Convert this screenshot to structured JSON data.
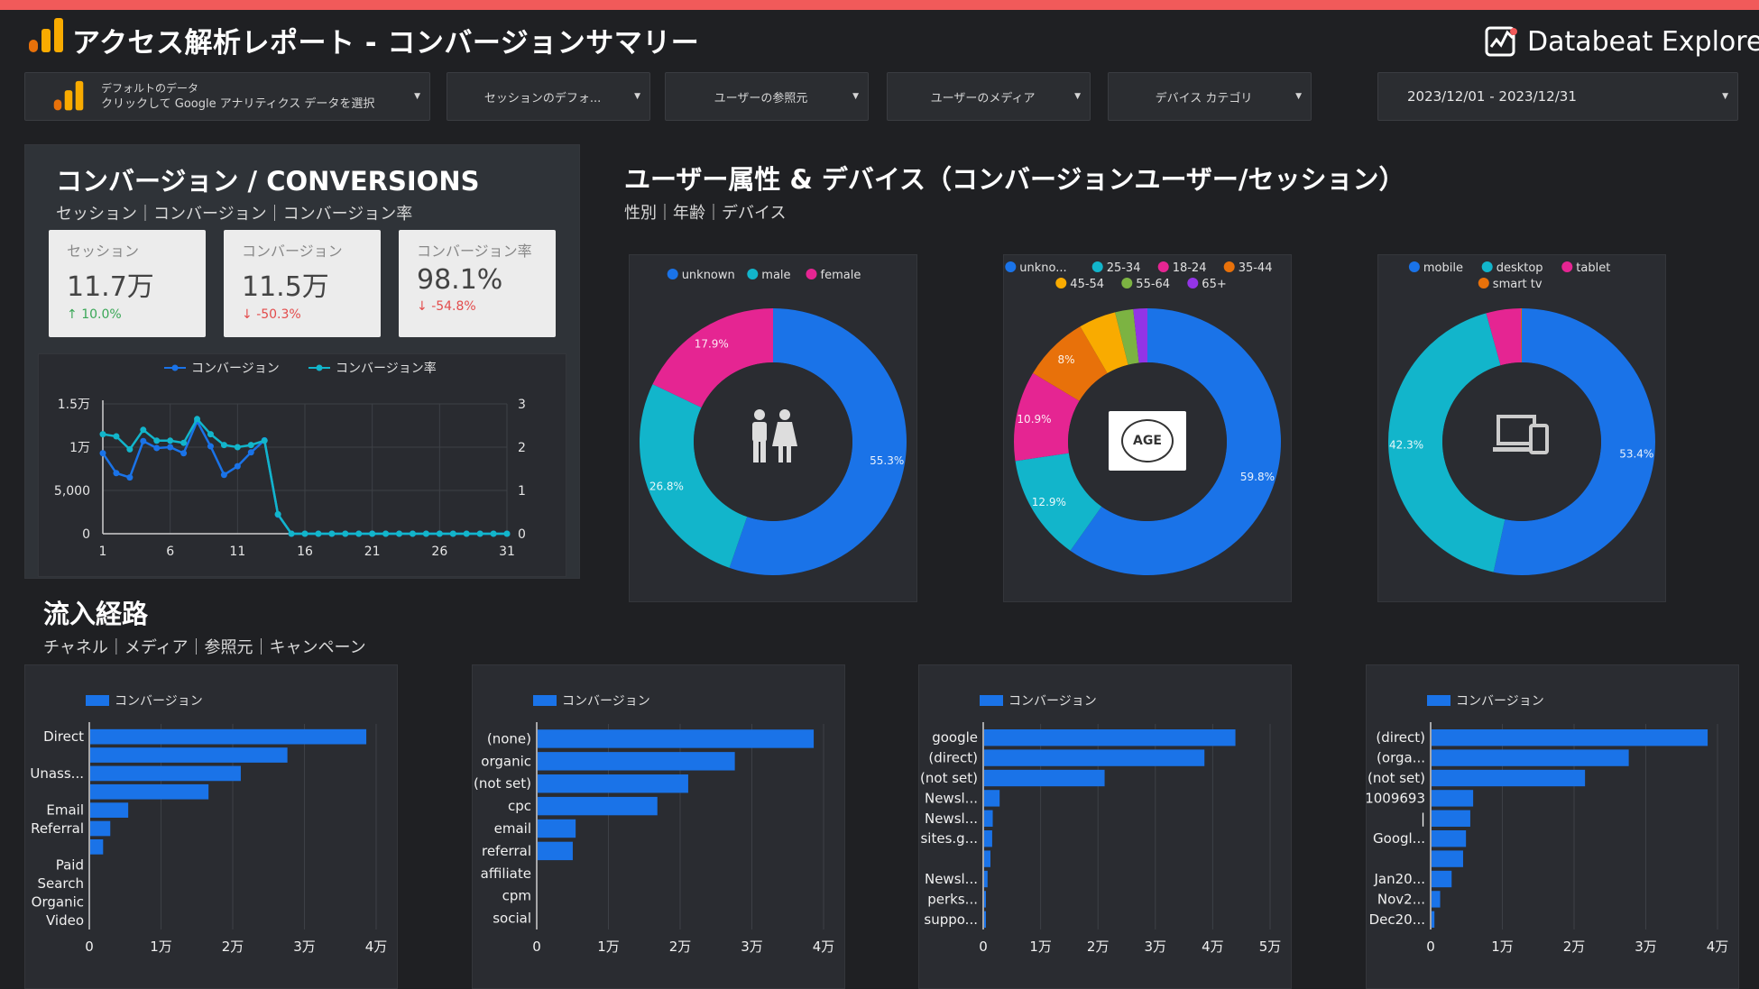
{
  "header": {
    "title": "アクセス解析レポート - コンバージョンサマリー",
    "brand": "Databeat Explore"
  },
  "filters": {
    "datasource_line1": "デフォルトのデータ",
    "datasource_line2": "クリックして Google アナリティクス データを選択",
    "session_default": "セッションのデフォ...",
    "user_source": "ユーザーの参照元",
    "user_medium": "ユーザーのメディア",
    "device_category": "デバイス カテゴリ",
    "date_range": "2023/12/01 - 2023/12/31"
  },
  "conversions": {
    "title": "コンバージョン / CONVERSIONS",
    "subtitle": "セッション｜コンバージョン｜コンバージョン率",
    "kpis": [
      {
        "label": "セッション",
        "value": "11.7万",
        "delta": "10.0%",
        "direction": "up"
      },
      {
        "label": "コンバージョン",
        "value": "11.5万",
        "delta": "-50.3%",
        "direction": "down"
      },
      {
        "label": "コンバージョン率",
        "value": "98.1%",
        "delta": "-54.8%",
        "direction": "down"
      }
    ]
  },
  "demographics": {
    "title": "ユーザー属性 & デバイス（コンバージョンユーザー/セッション）",
    "subtitle": "性別｜年齢｜デバイス",
    "age_icon_text": "AGE"
  },
  "traffic": {
    "title": "流入経路",
    "subtitle": "チャネル｜メディア｜参照元｜キャンペーン"
  },
  "colors": {
    "blue": "#1a73e8",
    "teal": "#12b5cb",
    "magenta": "#e52592",
    "orange": "#e8710a",
    "amber": "#f9ab00",
    "green": "#7cb342",
    "purple": "#9334e6",
    "background": "#1f2023",
    "panel": "#2a2c31",
    "accent_bar": "#f15a5a"
  },
  "chart_data": [
    {
      "type": "line",
      "legend": [
        "コンバージョン",
        "コンバージョン率"
      ],
      "x": [
        1,
        2,
        3,
        4,
        5,
        6,
        7,
        8,
        9,
        10,
        11,
        12,
        13,
        14,
        15,
        16,
        17,
        18,
        19,
        20,
        21,
        22,
        23,
        24,
        25,
        26,
        27,
        28,
        29,
        30,
        31
      ],
      "xticks": [
        "1",
        "6",
        "11",
        "16",
        "21",
        "26",
        "31"
      ],
      "yticks_left": [
        "1.5万",
        "1万",
        "5,000",
        "0"
      ],
      "yticks_right": [
        "3",
        "2",
        "1",
        "0"
      ],
      "ylim_left": [
        0,
        15000
      ],
      "ylim_right": [
        0,
        3
      ],
      "series": [
        {
          "name": "コンバージョン",
          "axis": "left",
          "values": [
            9300,
            7000,
            6500,
            10700,
            9900,
            10000,
            9300,
            13000,
            10100,
            6800,
            7800,
            9400,
            10800,
            2200,
            0,
            0,
            0,
            0,
            0,
            0,
            0,
            0,
            0,
            0,
            0,
            0,
            0,
            0,
            0,
            0,
            0
          ]
        },
        {
          "name": "コンバージョン率",
          "axis": "right",
          "values": [
            2.3,
            2.25,
            1.95,
            2.4,
            2.15,
            2.15,
            2.1,
            2.65,
            2.3,
            2.05,
            2.0,
            2.05,
            2.15,
            0.45,
            0,
            0,
            0,
            0,
            0,
            0,
            0,
            0,
            0,
            0,
            0,
            0,
            0,
            0,
            0,
            0,
            0
          ]
        }
      ]
    },
    {
      "type": "pie",
      "legend": [
        "unknown",
        "male",
        "female"
      ],
      "values": [
        55.3,
        26.8,
        17.9
      ],
      "labels": [
        "55.3%",
        "26.8%",
        "17.9%"
      ],
      "colors": [
        "#1a73e8",
        "#12b5cb",
        "#e52592"
      ]
    },
    {
      "type": "pie",
      "legend": [
        "unkno...",
        "25-34",
        "18-24",
        "35-44",
        "45-54",
        "55-64",
        "65+"
      ],
      "values": [
        59.8,
        12.9,
        10.9,
        8.0,
        4.5,
        2.2,
        1.7
      ],
      "labels": [
        "59.8%",
        "12.9%",
        "10.9%",
        "8%",
        "",
        "",
        ""
      ],
      "colors": [
        "#1a73e8",
        "#12b5cb",
        "#e52592",
        "#e8710a",
        "#f9ab00",
        "#7cb342",
        "#9334e6"
      ]
    },
    {
      "type": "pie",
      "legend": [
        "mobile",
        "desktop",
        "tablet",
        "smart tv"
      ],
      "values": [
        53.4,
        42.3,
        4.2,
        0.1
      ],
      "labels": [
        "53.4%",
        "42.3%",
        "",
        ""
      ],
      "colors": [
        "#1a73e8",
        "#12b5cb",
        "#e52592",
        "#e8710a"
      ]
    },
    {
      "type": "bar",
      "orientation": "horizontal",
      "legend": "コンバージョン",
      "categories": [
        "Direct",
        "",
        "Unass...",
        "",
        "Email",
        "Referral",
        "",
        "Paid",
        "Search",
        "Organic",
        "Video"
      ],
      "values": [
        38500,
        27500,
        21000,
        16500,
        5300,
        2800,
        1800,
        0,
        0,
        0,
        0
      ],
      "xticks": [
        "0",
        "1万",
        "2万",
        "3万",
        "4万"
      ],
      "xlim": [
        0,
        40000
      ]
    },
    {
      "type": "bar",
      "orientation": "horizontal",
      "legend": "コンバージョン",
      "categories": [
        "(none)",
        "organic",
        "(not set)",
        "cpc",
        "email",
        "referral",
        "affiliate",
        "cpm",
        "social"
      ],
      "values": [
        38500,
        27500,
        21000,
        16700,
        5300,
        4900,
        0,
        0,
        0
      ],
      "xticks": [
        "0",
        "1万",
        "2万",
        "3万",
        "4万"
      ],
      "xlim": [
        0,
        40000
      ]
    },
    {
      "type": "bar",
      "orientation": "horizontal",
      "legend": "コンバージョン",
      "categories": [
        "google",
        "(direct)",
        "(not set)",
        "Newsl...",
        "Newsl...",
        "sites.g...",
        "",
        "Newsl...",
        "perks...",
        "suppo..."
      ],
      "values": [
        43800,
        38400,
        21000,
        2700,
        1500,
        1400,
        1100,
        600,
        300,
        200
      ],
      "xticks": [
        "0",
        "1万",
        "2万",
        "3万",
        "4万",
        "5万"
      ],
      "xlim": [
        0,
        50000
      ]
    },
    {
      "type": "bar",
      "orientation": "horizontal",
      "legend": "コンバージョン",
      "categories": [
        "(direct)",
        "(orga...",
        "(not set)",
        "1009693",
        "|",
        "Googl...",
        "",
        "Jan20...",
        "Nov2...",
        "Dec20..."
      ],
      "values": [
        38500,
        27500,
        21400,
        5800,
        5400,
        4800,
        4400,
        2800,
        1200,
        400
      ],
      "xticks": [
        "0",
        "1万",
        "2万",
        "3万",
        "4万"
      ],
      "xlim": [
        0,
        40000
      ]
    }
  ]
}
